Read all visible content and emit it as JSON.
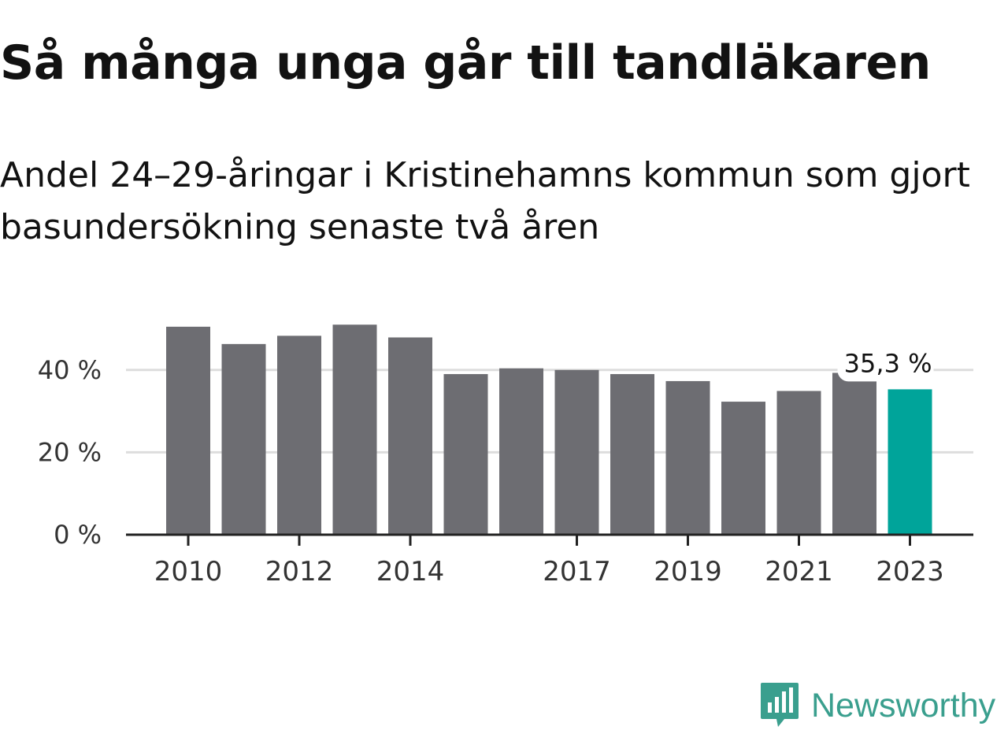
{
  "title": "Så många unga går till tandläkaren",
  "subtitle": "Andel 24–29-åringar i Kristinehamns kommun som gjort basundersökning senaste två åren",
  "brand": {
    "name": "Newsworthy",
    "icon": "newsworthy-logo-icon",
    "color": "#3a9f8e"
  },
  "colors": {
    "bar": "#6d6d72",
    "highlight": "#00a49a",
    "grid": "#dddddd",
    "axis": "#222222"
  },
  "chart_data": {
    "type": "bar",
    "title": "Så många unga går till tandläkaren",
    "subtitle": "Andel 24–29-åringar i Kristinehamns kommun som gjort basundersökning senaste två åren",
    "xlabel": "",
    "ylabel": "",
    "categories": [
      "2010",
      "2011",
      "2012",
      "2013",
      "2014",
      "2015",
      "2016",
      "2017",
      "2018",
      "2019",
      "2020",
      "2021",
      "2022",
      "2023"
    ],
    "values": [
      50.5,
      46.3,
      48.3,
      51.0,
      47.9,
      39.0,
      40.4,
      40.0,
      39.0,
      37.3,
      32.3,
      34.9,
      39.3,
      35.3
    ],
    "x_tick_labels": [
      "2010",
      "",
      "2012",
      "",
      "2014",
      "",
      "",
      "2017",
      "",
      "2019",
      "",
      "2021",
      "",
      "2023"
    ],
    "y_ticks": [
      0,
      20,
      40
    ],
    "y_tick_labels": [
      "0 %",
      "20 %",
      "40 %"
    ],
    "ylim": [
      0,
      52
    ],
    "grid": true,
    "highlight_index": 13,
    "annotation": {
      "index": 13,
      "text": "35,3 %"
    }
  }
}
